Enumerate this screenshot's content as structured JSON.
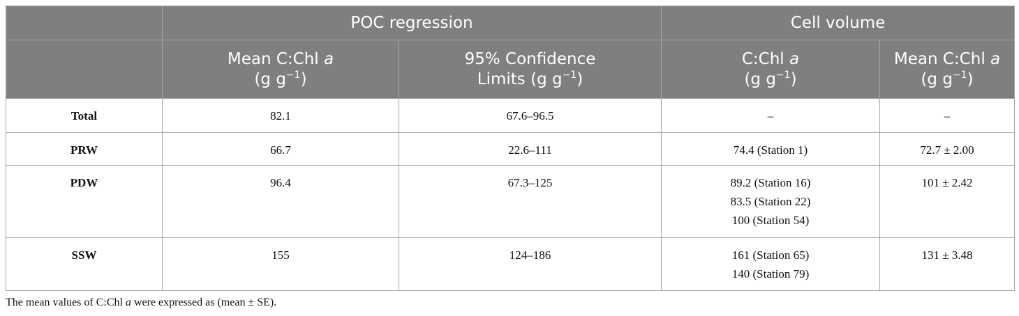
{
  "table": {
    "header_groups": [
      "POC regression",
      "Cell volume"
    ],
    "columns": [
      [
        "Mean C:Chl ",
        "a",
        "(g g",
        "−1",
        ")"
      ],
      [
        "95% Confidence",
        "Limits (g g",
        "−1",
        ")"
      ],
      [
        "C:Chl ",
        "a",
        "(g g",
        "−1",
        ")"
      ],
      [
        "Mean C:Chl ",
        "a",
        "(g g",
        "−1",
        ")"
      ]
    ],
    "rows": [
      {
        "label": "Total",
        "cells": [
          [
            "82.1"
          ],
          [
            "67.6–96.5"
          ],
          [
            "–"
          ],
          [
            "–"
          ]
        ]
      },
      {
        "label": "PRW",
        "cells": [
          [
            "66.7"
          ],
          [
            "22.6–111"
          ],
          [
            "74.4 (Station 1)"
          ],
          [
            "72.7 ± 2.00"
          ]
        ]
      },
      {
        "label": "PDW",
        "cells": [
          [
            "96.4"
          ],
          [
            "67.3–125"
          ],
          [
            "89.2 (Station 16)",
            "83.5 (Station 22)",
            "100 (Station 54)"
          ],
          [
            "101 ± 2.42"
          ]
        ]
      },
      {
        "label": "SSW",
        "cells": [
          [
            "155"
          ],
          [
            "124–186"
          ],
          [
            "161 (Station 65)",
            "140 (Station 79)"
          ],
          [
            "131 ± 3.48"
          ]
        ]
      }
    ]
  },
  "footnote": [
    "The mean values of C:Chl ",
    "a",
    " were expressed as (mean ± SE)."
  ]
}
